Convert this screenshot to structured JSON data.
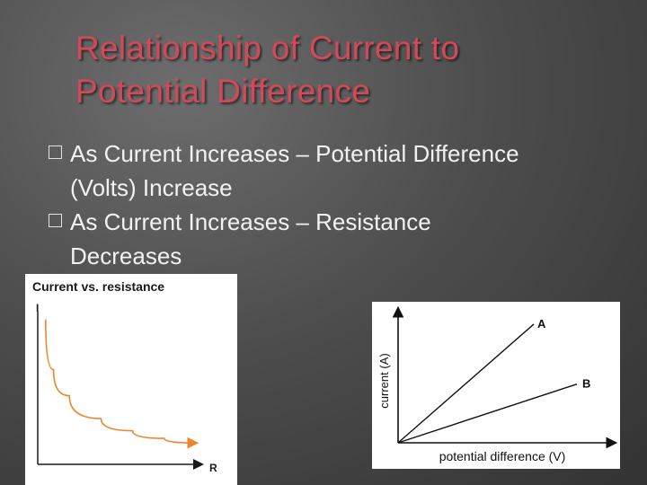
{
  "slide": {
    "title_line1": "Relationship of Current to",
    "title_line2": "Potential Difference",
    "bullets": [
      {
        "line1": "As Current Increases – Potential Difference",
        "line2": "(Volts) Increase"
      },
      {
        "line1": "As Current Increases – Resistance",
        "line2": "Decreases"
      }
    ],
    "bullet_glyph": "box-icon"
  },
  "chart_data": [
    {
      "type": "line",
      "title": "Current vs. resistance",
      "xlabel": "R",
      "ylabel": "I",
      "legend": "none",
      "grid": false,
      "series": [
        {
          "values": [
            {
              "x": 0.05,
              "y": 0.95
            },
            {
              "x": 0.1,
              "y": 0.62
            },
            {
              "x": 0.2,
              "y": 0.45
            },
            {
              "x": 0.4,
              "y": 0.3
            },
            {
              "x": 0.6,
              "y": 0.22
            },
            {
              "x": 0.8,
              "y": 0.17
            },
            {
              "x": 1.0,
              "y": 0.14
            }
          ]
        }
      ],
      "colors": {
        "curve": "#f0842a",
        "axes": "#1a1a1a"
      }
    },
    {
      "type": "line",
      "title": "",
      "xlabel": "potential difference (V)",
      "ylabel": "current (A)",
      "legend": "none",
      "grid": false,
      "series": [
        {
          "name": "A",
          "values": [
            {
              "x": 0,
              "y": 0
            },
            {
              "x": 1,
              "y": 0.95
            }
          ]
        },
        {
          "name": "B",
          "values": [
            {
              "x": 0,
              "y": 0
            },
            {
              "x": 1,
              "y": 0.47
            }
          ]
        }
      ],
      "colors": {
        "lines": "#111111",
        "axes": "#111111"
      }
    }
  ]
}
